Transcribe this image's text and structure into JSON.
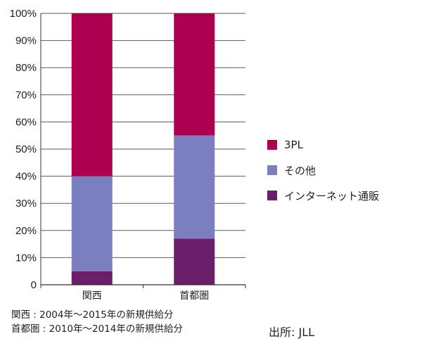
{
  "chart_data": {
    "type": "bar",
    "stacked": true,
    "categories": [
      "関西",
      "首都圏"
    ],
    "series": [
      {
        "name": "インターネット通販",
        "color": "#6b1f6b",
        "values": [
          5,
          17
        ]
      },
      {
        "name": "その他",
        "color": "#7b7fc0",
        "values": [
          35,
          38
        ]
      },
      {
        "name": "3PL",
        "color": "#ad0050",
        "values": [
          60,
          45
        ]
      }
    ],
    "ylim": [
      0,
      100
    ],
    "y_ticks": [
      "0",
      "10%",
      "20%",
      "30%",
      "40%",
      "50%",
      "60%",
      "70%",
      "80%",
      "90%",
      "100%"
    ],
    "grid": true,
    "legend_position": "right",
    "legend_order": [
      "3PL",
      "その他",
      "インターネット通販"
    ]
  },
  "notes": [
    "関西 : 2004年～2015年の新規供給分",
    "首都圏 : 2010年～2014年の新規供給分"
  ],
  "source": "出所: JLL"
}
